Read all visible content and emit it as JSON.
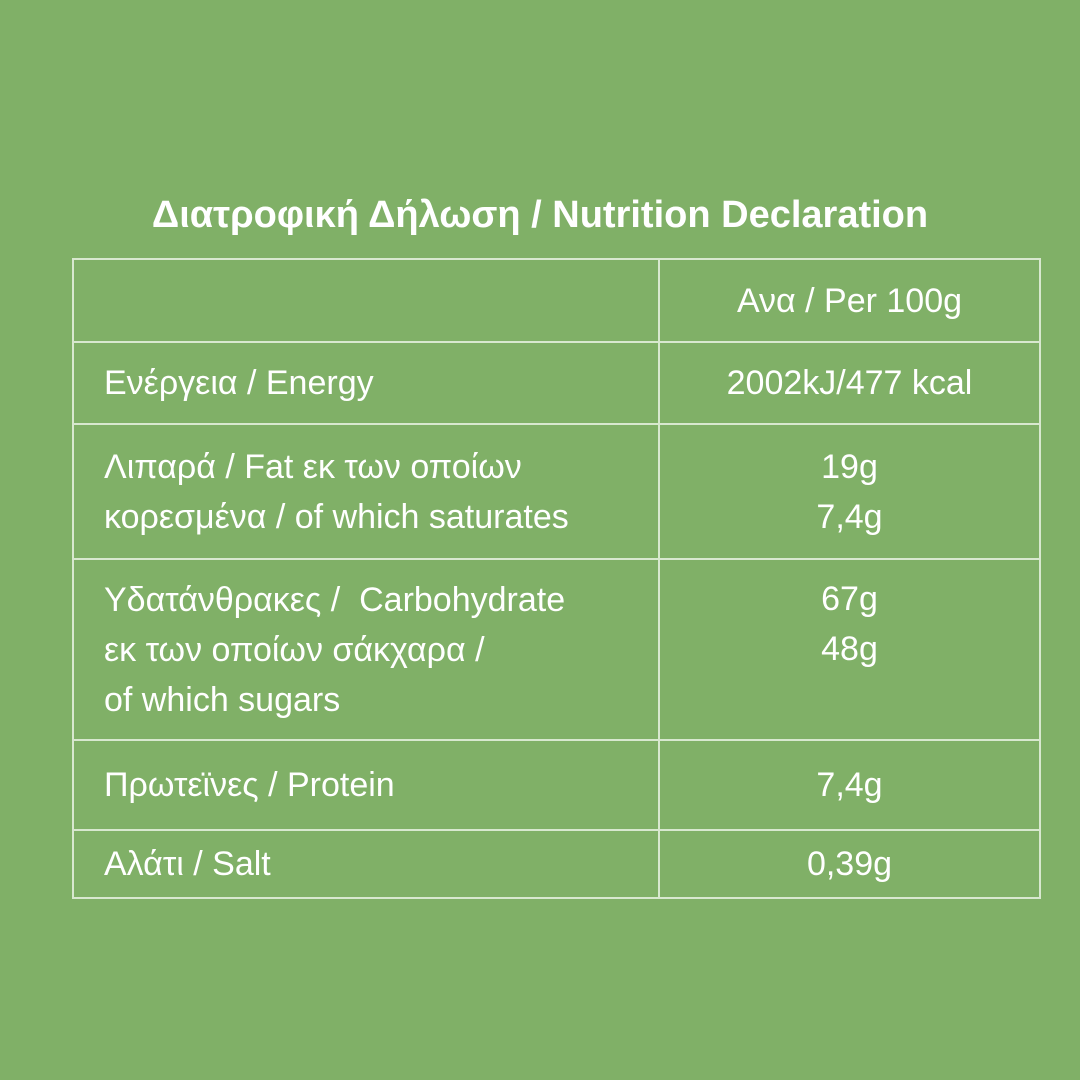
{
  "title": "Διατροφική Δήλωση / Nutrition Declaration",
  "table": {
    "header": {
      "per": "Ανα / Per 100g"
    },
    "rows": [
      {
        "label": [
          "Ενέργεια / Energy"
        ],
        "value": [
          "2002kJ/477 kcal"
        ]
      },
      {
        "label": [
          "Λιπαρά / Fat εκ των οποίων",
          "κορεσμένα / of which saturates"
        ],
        "value": [
          "19g",
          "7,4g"
        ]
      },
      {
        "label": [
          "Υδατάνθρακες /  Carbohydrate",
          "εκ των οποίων σάκχαρα /",
          "of which sugars"
        ],
        "value": [
          "67g",
          "48g"
        ]
      },
      {
        "label": [
          "Πρωτεϊνες / Protein"
        ],
        "value": [
          "7,4g"
        ]
      },
      {
        "label": [
          "Αλάτι / Salt"
        ],
        "value": [
          "0,39g"
        ]
      }
    ]
  }
}
